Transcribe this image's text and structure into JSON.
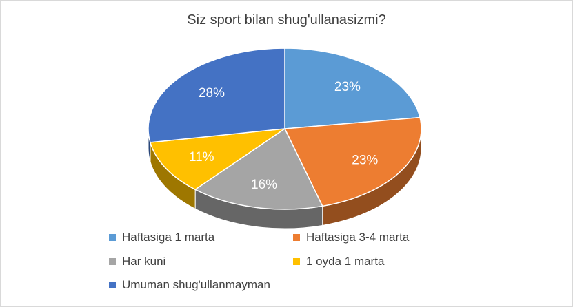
{
  "chart_data": {
    "type": "pie",
    "style": "3d",
    "title": "Siz sport bilan shug'ullanasizmi?",
    "categories": [
      "Haftasiga 1 marta",
      "Haftasiga 3-4 marta",
      "Har kuni",
      "1 oyda 1 marta",
      "Umuman shug'ullanmayman"
    ],
    "values": [
      23,
      23,
      16,
      11,
      28
    ],
    "labels": [
      "23%",
      "23%",
      "16%",
      "11%",
      "28%"
    ],
    "colors": [
      "#5b9bd5",
      "#ed7d31",
      "#a5a5a5",
      "#ffc000",
      "#4472c4"
    ],
    "legend_position": "bottom"
  }
}
